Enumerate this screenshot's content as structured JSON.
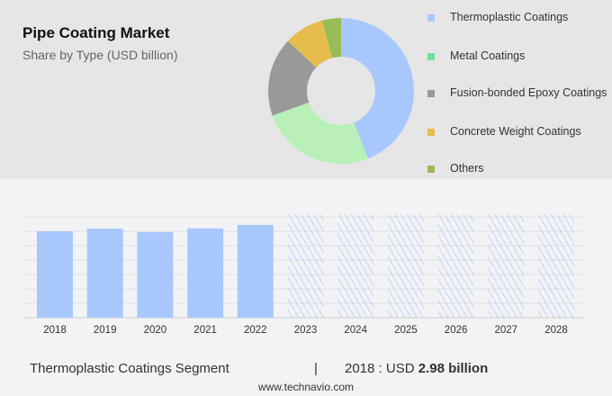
{
  "title": "Pipe Coating Market",
  "subtitle": "Share by Type (USD billion)",
  "chart_data": [
    {
      "type": "pie",
      "donut": true,
      "categories": [
        "Thermoplastic Coatings",
        "Metal Coatings",
        "Fusion-bonded Epoxy Coatings",
        "Concrete Weight Coatings",
        "Others"
      ],
      "values": [
        44,
        25.5,
        17.5,
        8.8,
        4.2
      ],
      "colors": [
        "#a8c8fd",
        "#b8f0b8",
        "#9a9a9a",
        "#e6bd4d",
        "#99bb55"
      ],
      "legend_colors": [
        "#a8c8fd",
        "#6ee09a",
        "#9a9a9a",
        "#e6bd4d",
        "#99bb55"
      ],
      "legend": "right"
    },
    {
      "type": "bar",
      "categories": [
        "2018",
        "2019",
        "2020",
        "2021",
        "2022",
        "2023",
        "2024",
        "2025",
        "2026",
        "2027",
        "2028"
      ],
      "values": [
        2.98,
        3.07,
        2.95,
        3.08,
        3.2,
        null,
        null,
        null,
        null,
        null,
        null
      ],
      "forecast": [
        "2023",
        "2024",
        "2025",
        "2026",
        "2027",
        "2028"
      ],
      "ylim": [
        0,
        3.6
      ],
      "grid": true,
      "color": "#a8c8fd"
    }
  ],
  "footer": {
    "segment": "Thermoplastic Coatings Segment",
    "sep": "|",
    "year_label": "2018 : USD",
    "value": "2.98 billion",
    "site": "www.technavio.com"
  }
}
